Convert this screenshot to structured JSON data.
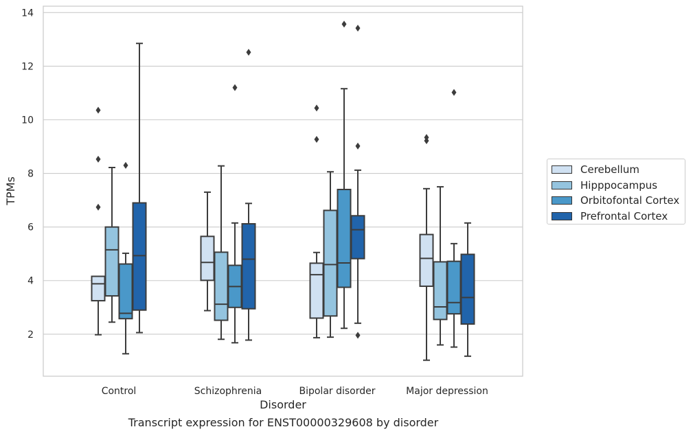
{
  "chart_data": {
    "type": "box",
    "title": "",
    "caption": "Transcript expression for ENST00000329608 by disorder",
    "xlabel": "Disorder",
    "ylabel": "TPMs",
    "ylim": [
      0.4,
      14.2
    ],
    "yticks": [
      2,
      4,
      6,
      8,
      10,
      12,
      14
    ],
    "grid": "horizontal",
    "legend_position": "right",
    "categories": [
      "Control",
      "Schizophrenia",
      "Bipolar disorder",
      "Major depression"
    ],
    "series": [
      {
        "name": "Cerebellum",
        "color": "#d0e1f2",
        "boxes": [
          {
            "whisker_low": 1.98,
            "q1": 3.25,
            "median": 3.88,
            "q3": 4.16,
            "whisker_high": 4.16,
            "outliers": [
              6.74,
              8.53,
              10.36
            ]
          },
          {
            "whisker_low": 2.88,
            "q1": 4.01,
            "median": 4.68,
            "q3": 5.65,
            "whisker_high": 7.3,
            "outliers": []
          },
          {
            "whisker_low": 1.87,
            "q1": 2.6,
            "median": 4.22,
            "q3": 4.65,
            "whisker_high": 5.05,
            "outliers": [
              9.27,
              10.44
            ]
          },
          {
            "whisker_low": 1.03,
            "q1": 3.79,
            "median": 4.83,
            "q3": 5.72,
            "whisker_high": 7.43,
            "outliers": [
              9.22,
              9.34
            ]
          }
        ]
      },
      {
        "name": "Hipppocampus",
        "color": "#94c4df",
        "boxes": [
          {
            "whisker_low": 2.45,
            "q1": 3.43,
            "median": 5.15,
            "q3": 6.0,
            "whisker_high": 8.22,
            "outliers": []
          },
          {
            "whisker_low": 1.81,
            "q1": 2.52,
            "median": 3.12,
            "q3": 5.06,
            "whisker_high": 8.28,
            "outliers": []
          },
          {
            "whisker_low": 1.89,
            "q1": 2.68,
            "median": 4.6,
            "q3": 6.62,
            "whisker_high": 8.06,
            "outliers": []
          },
          {
            "whisker_low": 1.6,
            "q1": 2.55,
            "median": 3.02,
            "q3": 4.7,
            "whisker_high": 7.5,
            "outliers": []
          }
        ]
      },
      {
        "name": "Orbitofontal Cortex",
        "color": "#4a98c9",
        "boxes": [
          {
            "whisker_low": 1.27,
            "q1": 2.58,
            "median": 2.78,
            "q3": 4.62,
            "whisker_high": 5.02,
            "outliers": [
              8.3
            ]
          },
          {
            "whisker_low": 1.68,
            "q1": 3.0,
            "median": 3.78,
            "q3": 4.57,
            "whisker_high": 6.15,
            "outliers": [
              11.2
            ]
          },
          {
            "whisker_low": 2.22,
            "q1": 3.75,
            "median": 4.66,
            "q3": 7.4,
            "whisker_high": 11.16,
            "outliers": [
              13.57
            ]
          },
          {
            "whisker_low": 1.52,
            "q1": 2.76,
            "median": 3.18,
            "q3": 4.72,
            "whisker_high": 5.38,
            "outliers": [
              11.02
            ]
          }
        ]
      },
      {
        "name": "Prefrontal Cortex",
        "color": "#2164ab",
        "boxes": [
          {
            "whisker_low": 2.06,
            "q1": 2.9,
            "median": 4.93,
            "q3": 6.9,
            "whisker_high": 12.85,
            "outliers": []
          },
          {
            "whisker_low": 1.78,
            "q1": 2.95,
            "median": 4.8,
            "q3": 6.12,
            "whisker_high": 6.88,
            "outliers": [
              12.52
            ]
          },
          {
            "whisker_low": 2.41,
            "q1": 4.82,
            "median": 5.9,
            "q3": 6.42,
            "whisker_high": 8.12,
            "outliers": [
              1.96,
              9.02,
              13.42
            ]
          },
          {
            "whisker_low": 1.18,
            "q1": 2.38,
            "median": 3.37,
            "q3": 4.98,
            "whisker_high": 6.15,
            "outliers": []
          }
        ]
      }
    ]
  }
}
